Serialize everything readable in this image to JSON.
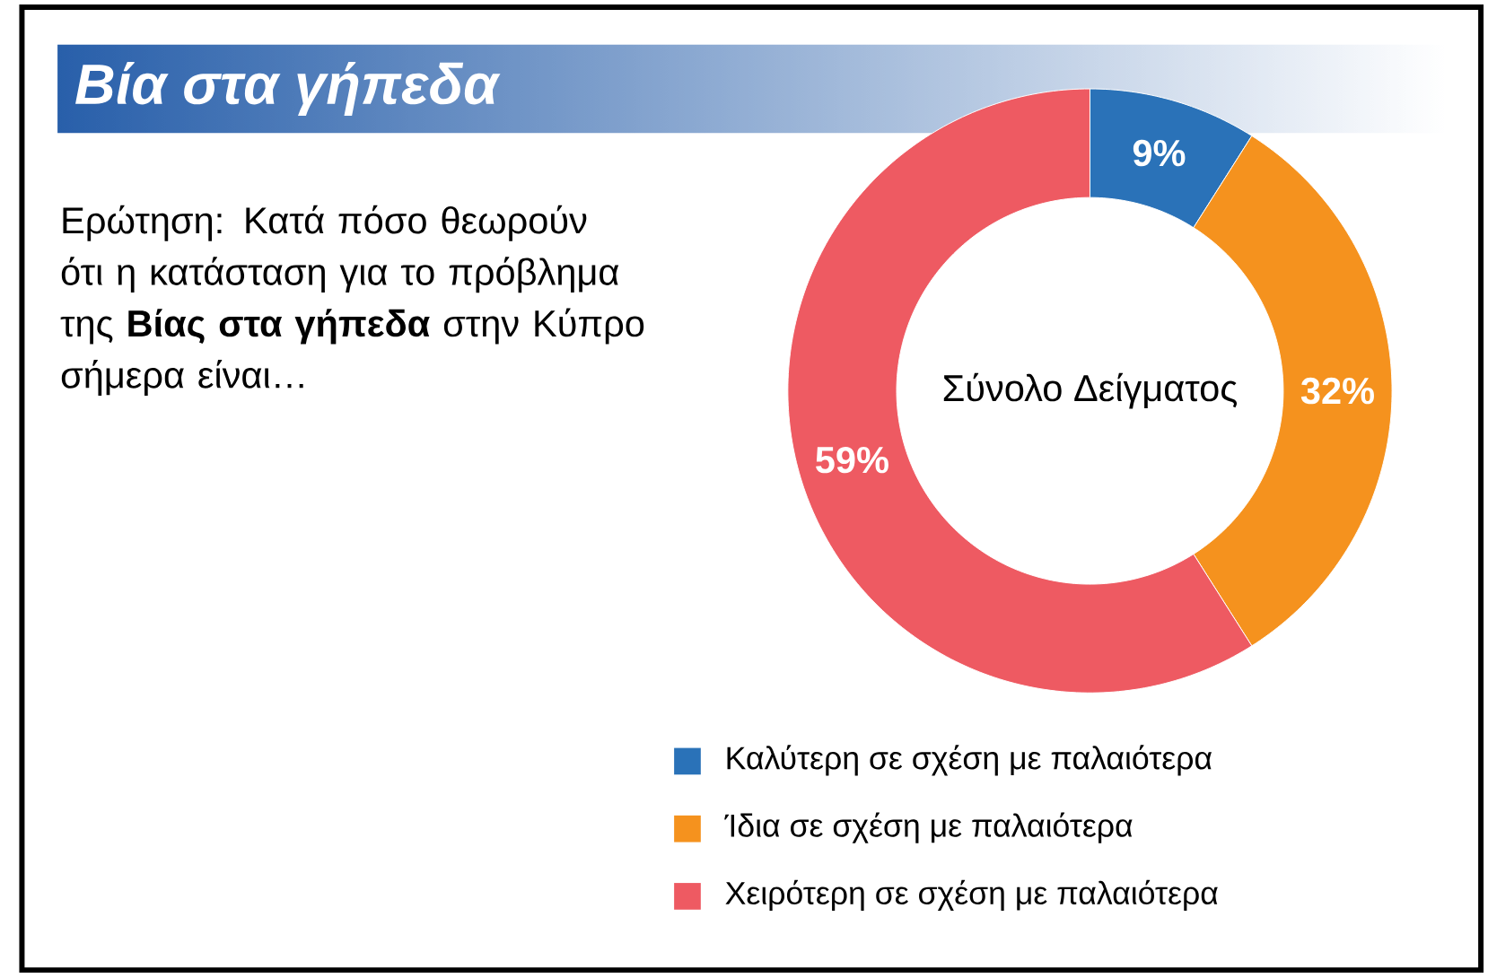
{
  "chart_data": {
    "type": "donut",
    "title": "Βία στα γήπεδα",
    "subtitle": "Ερώτηση: Κατά πόσο θεωρούν ότι η κατάσταση για το πρόβλημα της **Βίας στα γήπεδα** στην Κύπρο σήμερα είναι…",
    "annotations": [
      "Σύνολο Δείγματος"
    ],
    "categories": [
      "Καλύτερη σε σχέση με παλαιότερα",
      "Ίδια σε σχέση με παλαιότερα",
      "Χειρότερη σε σχέση με παλαιότερα"
    ],
    "values": [
      9,
      32,
      59
    ],
    "colors": [
      "#2a72b8",
      "#f5921e",
      "#ee5a62"
    ],
    "value_labels": [
      "9%",
      "32%",
      "59%"
    ],
    "legend": "bottom"
  }
}
